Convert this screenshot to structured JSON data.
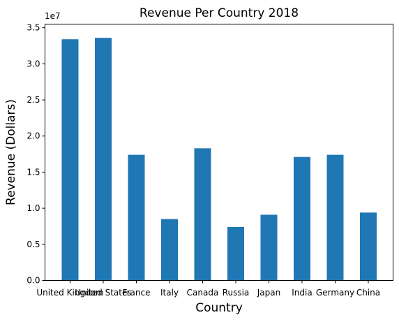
{
  "chart_data": {
    "type": "bar",
    "title": "Revenue Per Country 2018",
    "xlabel": "Country",
    "ylabel": "Revenue (Dollars)",
    "y_scale_label": "1e7",
    "categories": [
      "United Kingdom",
      "United States",
      "France",
      "Italy",
      "Canada",
      "Russia",
      "Japan",
      "India",
      "Germany",
      "China"
    ],
    "values": [
      33400000,
      33600000,
      17400000,
      8500000,
      18300000,
      7400000,
      9100000,
      17100000,
      17400000,
      9400000
    ],
    "ylim": [
      0,
      35500000
    ],
    "yticks": [
      0,
      5000000,
      10000000,
      15000000,
      20000000,
      25000000,
      30000000,
      35000000
    ],
    "ytick_labels": [
      "0.0",
      "0.5",
      "1.0",
      "1.5",
      "2.0",
      "2.5",
      "3.0",
      "3.5"
    ],
    "bar_color": "#1f77b4",
    "grid": false,
    "legend": false
  }
}
